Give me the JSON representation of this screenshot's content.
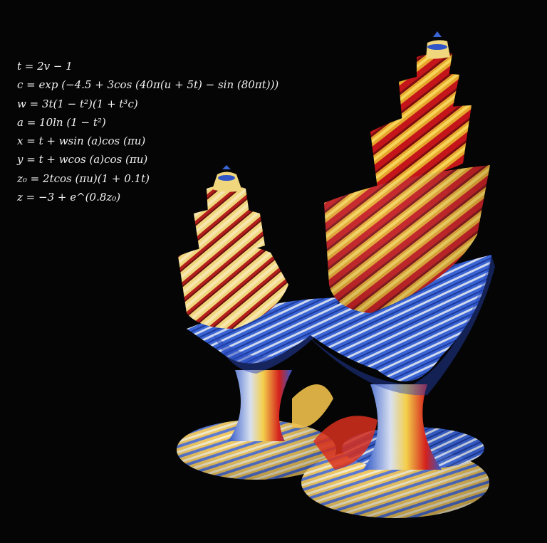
{
  "equations": [
    "t = 2v − 1",
    "c = exp (−4.5 + 3cos (40π(u + 5t) − sin (80πt)))",
    "w = 3t(1 − t²)(1 + t³c)",
    "a = 10ln (1 − t²)",
    "x = t + wsin (a)cos (πu)",
    "y = t + wcos (a)cos (πu)",
    "z₀ = 2tcos (πu)(1 + 0.1t)",
    "z = −3 + e^(0.8z₀)"
  ],
  "colors": {
    "background": "#050505",
    "red": "#d21b1b",
    "yellow": "#f2c233",
    "cream": "#f3ecd0",
    "blue": "#2f55c8",
    "light_blue": "#b9cbe8"
  }
}
